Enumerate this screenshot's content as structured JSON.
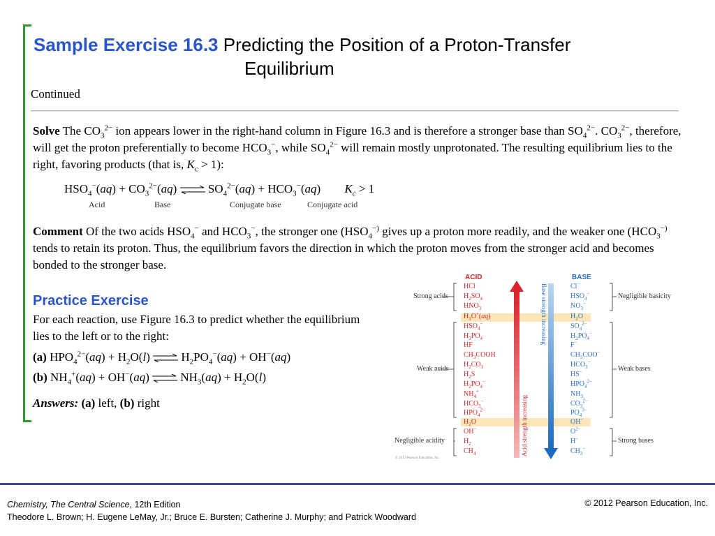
{
  "title": {
    "number": "Sample Exercise 16.3",
    "text_line1": "Predicting the Position of a Proton-Transfer",
    "text_line2": "Equilibrium"
  },
  "continued": "Continued",
  "solve": {
    "label": "Solve"
  },
  "reaction": {
    "labels": [
      "Acid",
      "Base",
      "Conjugate base",
      "Conjugate acid"
    ]
  },
  "comment": {
    "label": "Comment"
  },
  "practice": {
    "heading": "Practice Exercise",
    "text": "For each reaction, use Figure 16.3 to predict whether the equilibrium lies to the left or to the right:",
    "answers_label": "Answers:",
    "answers": [
      "left",
      "right"
    ]
  },
  "figure": {
    "acid_header": "ACID",
    "base_header": "BASE",
    "categories_left": [
      "Strong acids",
      "Weak acids",
      "Negligible acidity"
    ],
    "categories_right": [
      "Negligible basicity",
      "Weak bases",
      "Strong bases"
    ],
    "base_arrow_label": "Base strength increasing",
    "acid_arrow_label": "Acid strength increasing",
    "credit": "© 2012 Pearson Education, Inc."
  },
  "footer": {
    "book": "Chemistry, The Central Science",
    "edition": ", 12th Edition",
    "authors": "Theodore L. Brown; H. Eugene LeMay, Jr.; Bruce E. Bursten; Catherine J. Murphy; and Patrick Woodward",
    "copyright": "© 2012 Pearson Education, Inc."
  }
}
